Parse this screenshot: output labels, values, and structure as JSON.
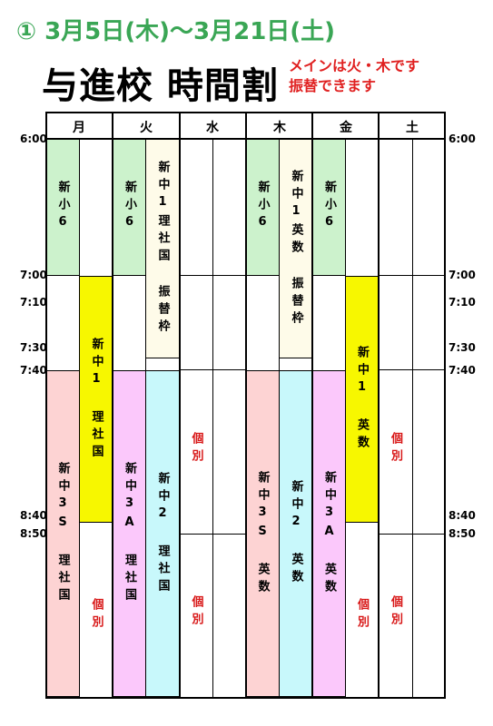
{
  "heading": "① 3月5日(木)〜3月21日(土)",
  "title": "与進校 時間割",
  "note": [
    "メインは火・木です",
    "振替できます"
  ],
  "days": [
    "月",
    "火",
    "水",
    "木",
    "金",
    "土"
  ],
  "times": [
    "6:00",
    "7:00",
    "7:10",
    "7:30",
    "7:40",
    "8:40",
    "8:50"
  ],
  "blocks": {
    "mon_a_1": "新小6",
    "mon_b_1": "新中1 理社国",
    "mon_a_2": "新中3S 理社国",
    "mon_b_2": "個別",
    "tue_a_1": "新小6",
    "tue_b_1": "新中1理社国 振替枠",
    "tue_a_2": "新中3A 理社国",
    "tue_b_2": "新中2 理社国",
    "wed_1": "個別",
    "wed_2": "個別",
    "thu_a_1": "新小6",
    "thu_b_1": "新中1英数 振替枠",
    "thu_a_2": "新中3S 英数",
    "thu_b_2": "新中2 英数",
    "fri_a_1": "新小6",
    "fri_b_1": "新中1 英数",
    "fri_a_2": "新中3A 英数",
    "fri_b_2": "個別",
    "sat_1": "個別",
    "sat_2": "個別"
  },
  "colors": {
    "heading": "#3aa655",
    "note": "#e02020",
    "elementary": "#ccf2cc",
    "grade1": "#f7f700",
    "grade3S": "#fdd3d3",
    "grade3A": "#fbc8fb",
    "grade2": "#c8f8fb",
    "makeup": "#fefbe9",
    "individual": "#d81818"
  }
}
